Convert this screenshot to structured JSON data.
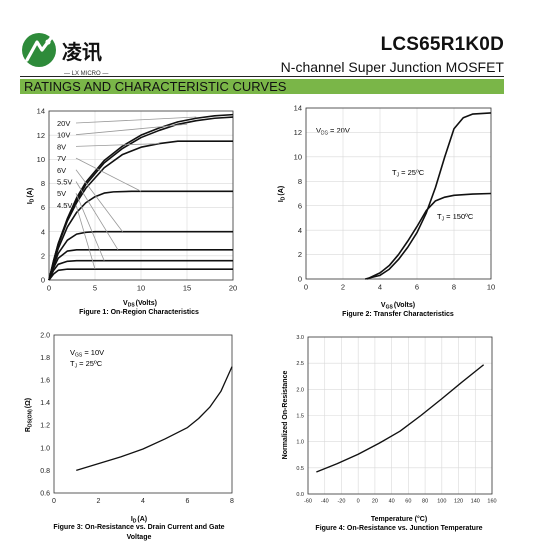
{
  "header": {
    "logo_text": "凌讯",
    "logo_subtext": "— LX MICRO —",
    "part_number": "LCS65R1K0D",
    "device_type": "N-channel Super Junction MOSFET",
    "section_title": "RATINGS AND CHARACTERISTIC CURVES"
  },
  "colors": {
    "banner": "#7ab648",
    "logo_green": "#2e8b3a",
    "curve": "#111111",
    "grid": "#d9d9d9"
  },
  "chart_data": [
    {
      "type": "line",
      "caption": "Figure 1: On-Region Characteristics",
      "xlabel_main": "V",
      "xlabel_sub": "DS",
      "xlabel_unit": "(Volts)",
      "ylabel_main": "I",
      "ylabel_sub": "D",
      "ylabel_unit": "(A)",
      "xlim": [
        0,
        20
      ],
      "ylim": [
        0,
        14
      ],
      "xticks": [
        0,
        5,
        10,
        15,
        20
      ],
      "yticks": [
        0,
        2,
        4,
        6,
        8,
        10,
        12,
        14
      ],
      "grid": true,
      "legend_labels": [
        "20V",
        "10V",
        "8V",
        "7V",
        "6V",
        "5.5V",
        "5V",
        "4.5V"
      ],
      "series": [
        {
          "name": "20V",
          "values": [
            [
              0,
              0
            ],
            [
              0.5,
              1.6
            ],
            [
              1,
              3.0
            ],
            [
              2,
              5.1
            ],
            [
              3,
              6.8
            ],
            [
              4,
              8.1
            ],
            [
              6,
              9.9
            ],
            [
              8,
              11.1
            ],
            [
              10,
              12.0
            ],
            [
              12,
              12.6
            ],
            [
              14,
              13.1
            ],
            [
              16,
              13.4
            ],
            [
              18,
              13.6
            ],
            [
              20,
              13.7
            ]
          ]
        },
        {
          "name": "10V",
          "values": [
            [
              0,
              0
            ],
            [
              0.5,
              1.6
            ],
            [
              1,
              3.0
            ],
            [
              2,
              5.0
            ],
            [
              3,
              6.6
            ],
            [
              4,
              7.9
            ],
            [
              6,
              9.7
            ],
            [
              8,
              10.9
            ],
            [
              10,
              11.8
            ],
            [
              12,
              12.4
            ],
            [
              14,
              12.9
            ],
            [
              16,
              13.2
            ],
            [
              18,
              13.4
            ],
            [
              20,
              13.5
            ]
          ]
        },
        {
          "name": "8V",
          "values": [
            [
              0,
              0
            ],
            [
              0.5,
              1.5
            ],
            [
              1,
              2.9
            ],
            [
              2,
              4.9
            ],
            [
              3,
              6.4
            ],
            [
              4,
              7.6
            ],
            [
              6,
              9.3
            ],
            [
              8,
              10.4
            ],
            [
              10,
              11.0
            ],
            [
              12,
              11.3
            ],
            [
              14,
              11.5
            ],
            [
              17,
              11.5
            ],
            [
              20,
              11.5
            ]
          ]
        },
        {
          "name": "7V",
          "values": [
            [
              0,
              0
            ],
            [
              0.5,
              1.4
            ],
            [
              1,
              2.6
            ],
            [
              2,
              4.4
            ],
            [
              3,
              5.6
            ],
            [
              4,
              6.4
            ],
            [
              5,
              6.9
            ],
            [
              6,
              7.2
            ],
            [
              7,
              7.3
            ],
            [
              9,
              7.35
            ],
            [
              12,
              7.35
            ],
            [
              20,
              7.35
            ]
          ]
        },
        {
          "name": "6V",
          "values": [
            [
              0,
              0
            ],
            [
              0.5,
              1.2
            ],
            [
              1,
              2.2
            ],
            [
              2,
              3.3
            ],
            [
              3,
              3.8
            ],
            [
              4,
              3.95
            ],
            [
              5,
              4.0
            ],
            [
              8,
              4.0
            ],
            [
              20,
              4.0
            ]
          ]
        },
        {
          "name": "5.5V",
          "values": [
            [
              0,
              0
            ],
            [
              0.5,
              1.0
            ],
            [
              1,
              1.8
            ],
            [
              2,
              2.4
            ],
            [
              3,
              2.5
            ],
            [
              5,
              2.5
            ],
            [
              20,
              2.5
            ]
          ]
        },
        {
          "name": "5V",
          "values": [
            [
              0,
              0
            ],
            [
              0.5,
              0.8
            ],
            [
              1,
              1.3
            ],
            [
              2,
              1.55
            ],
            [
              3,
              1.6
            ],
            [
              20,
              1.6
            ]
          ]
        },
        {
          "name": "4.5V",
          "values": [
            [
              0,
              0
            ],
            [
              0.5,
              0.5
            ],
            [
              1,
              0.8
            ],
            [
              2,
              0.9
            ],
            [
              3,
              0.9
            ],
            [
              20,
              0.9
            ]
          ]
        }
      ]
    },
    {
      "type": "line",
      "caption": "Figure 2: Transfer Characteristics",
      "xlabel_main": "V",
      "xlabel_sub": "GS",
      "xlabel_unit": "(Volts)",
      "ylabel_main": "I",
      "ylabel_sub": "D",
      "ylabel_unit": "(A)",
      "xlim": [
        0,
        10
      ],
      "ylim": [
        0,
        14
      ],
      "xticks": [
        0,
        2,
        4,
        6,
        8,
        10
      ],
      "yticks": [
        0,
        2,
        4,
        6,
        8,
        10,
        12,
        14
      ],
      "grid": true,
      "annotations": [
        {
          "main": "V",
          "sub": "DS",
          "rest": " = 20V"
        },
        {
          "main": "T",
          "sub": "J",
          "rest": " = 25ºC"
        },
        {
          "main": "T",
          "sub": "J",
          "rest": " = 150ºC"
        }
      ],
      "series": [
        {
          "name": "TJ = 25ºC",
          "values": [
            [
              3.2,
              0
            ],
            [
              4,
              0.3
            ],
            [
              4.5,
              0.8
            ],
            [
              5,
              1.6
            ],
            [
              5.5,
              2.6
            ],
            [
              6,
              3.8
            ],
            [
              6.5,
              5.4
            ],
            [
              7,
              7.5
            ],
            [
              7.5,
              10.0
            ],
            [
              8,
              12.3
            ],
            [
              8.5,
              13.2
            ],
            [
              9,
              13.5
            ],
            [
              10,
              13.6
            ]
          ]
        },
        {
          "name": "TJ = 150ºC",
          "values": [
            [
              3.3,
              0
            ],
            [
              4,
              0.5
            ],
            [
              4.5,
              1.1
            ],
            [
              5,
              2.0
            ],
            [
              5.5,
              3.1
            ],
            [
              6,
              4.3
            ],
            [
              6.5,
              5.6
            ],
            [
              7,
              6.4
            ],
            [
              7.5,
              6.7
            ],
            [
              8,
              6.85
            ],
            [
              9,
              6.95
            ],
            [
              10,
              7.0
            ]
          ]
        }
      ]
    },
    {
      "type": "line",
      "caption": "Figure 3: On-Resistance vs. Drain Current and Gate Voltage",
      "caption_line1": "Figure 3: On-Resistance vs. Drain Current and Gate",
      "caption_line2": "Voltage",
      "xlabel_main": "I",
      "xlabel_sub": "D",
      "xlabel_unit": "(A)",
      "ylabel_main": "R",
      "ylabel_sub": "DS(ON)",
      "ylabel_unit": "(Ω)",
      "xlim": [
        0,
        8
      ],
      "ylim": [
        0.6,
        2.0
      ],
      "xticks": [
        0,
        2,
        4,
        6,
        8
      ],
      "yticks": [
        "0.6",
        "0.8",
        "1.0",
        "1.2",
        "1.4",
        "1.6",
        "1.8",
        "2.0"
      ],
      "grid": false,
      "annotations": [
        {
          "main": "V",
          "sub": "GS",
          "rest": " = 10V"
        },
        {
          "main": "T",
          "sub": "J",
          "rest": " = 25ºC"
        }
      ],
      "series": [
        {
          "name": "VGS = 10V",
          "values": [
            [
              1,
              0.8
            ],
            [
              2,
              0.86
            ],
            [
              3,
              0.92
            ],
            [
              4,
              0.99
            ],
            [
              5,
              1.08
            ],
            [
              6,
              1.18
            ],
            [
              6.5,
              1.26
            ],
            [
              7,
              1.36
            ],
            [
              7.5,
              1.5
            ],
            [
              8,
              1.72
            ]
          ]
        }
      ]
    },
    {
      "type": "line",
      "caption": "Figure 4: On-Resistance vs. Junction Temperature",
      "xlabel": "Temperature (°C)",
      "ylabel": "Normalized On-Resistance",
      "xlim": [
        -60,
        160
      ],
      "ylim": [
        0.0,
        3.0
      ],
      "xticks": [
        -60,
        -40,
        -20,
        0,
        20,
        40,
        60,
        80,
        100,
        120,
        140,
        160
      ],
      "yticks": [
        "0.0",
        "0.5",
        "1.0",
        "1.5",
        "2.0",
        "2.5",
        "3.0"
      ],
      "grid": true,
      "series": [
        {
          "name": "Normalized RDS(on)",
          "values": [
            [
              -50,
              0.42
            ],
            [
              -25,
              0.58
            ],
            [
              0,
              0.76
            ],
            [
              25,
              0.97
            ],
            [
              50,
              1.2
            ],
            [
              75,
              1.5
            ],
            [
              100,
              1.82
            ],
            [
              125,
              2.15
            ],
            [
              150,
              2.47
            ]
          ]
        }
      ]
    }
  ]
}
